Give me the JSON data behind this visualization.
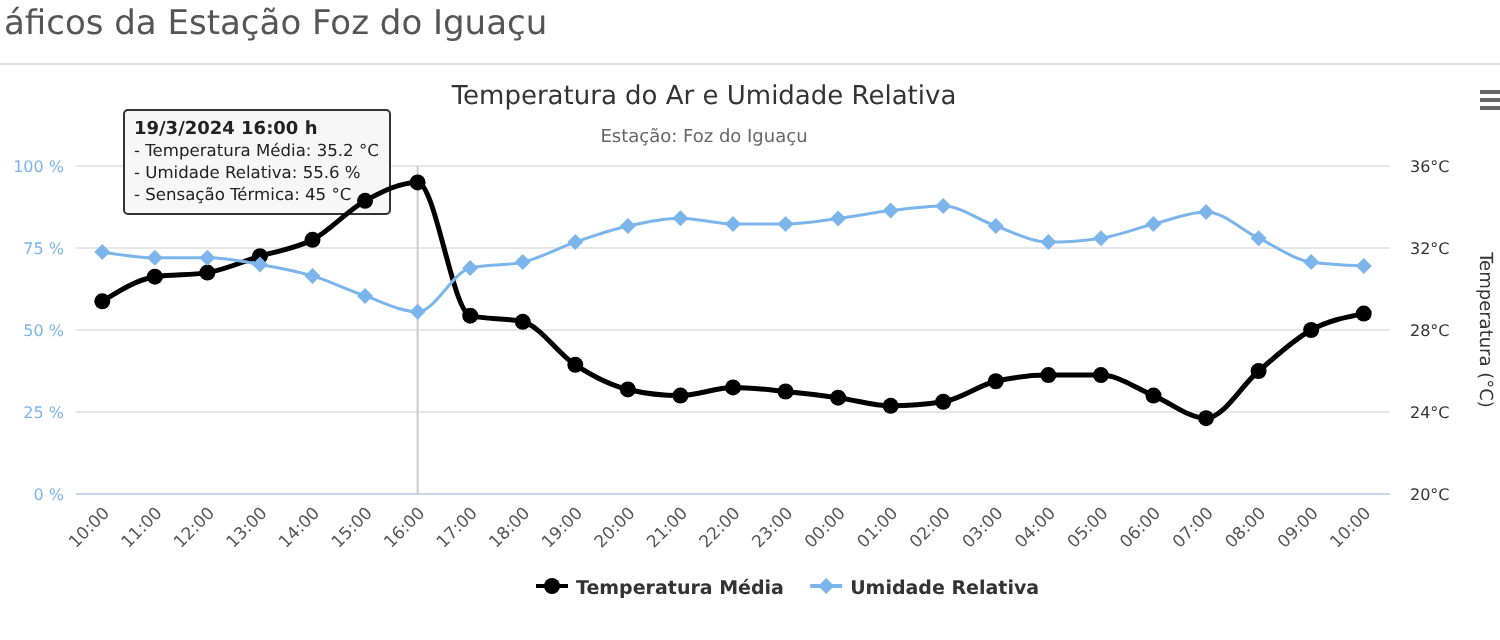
{
  "chart_data": {
    "type": "line",
    "title": "Temperatura do Ar e Umidade Relativa",
    "subtitle": "Estação: Foz do Iguaçu",
    "y2label": "Temperatura (°C)",
    "annotations": [
      "áficos da Estação Foz do Iguaçu",
      "19/3/2024 16:00 h\n- Temperatura Média: 35.2 °C\n- Umidade Relativa: 55.6 %\n- Sensação Térmica: 45 °C"
    ],
    "categories": [
      "10:00",
      "11:00",
      "12:00",
      "13:00",
      "14:00",
      "15:00",
      "16:00",
      "17:00",
      "18:00",
      "19:00",
      "20:00",
      "21:00",
      "22:00",
      "23:00",
      "00:00",
      "01:00",
      "02:00",
      "03:00",
      "04:00",
      "05:00",
      "06:00",
      "07:00",
      "08:00",
      "09:00",
      "10:00"
    ],
    "series": [
      {
        "name": "Temperatura Média",
        "color": "#000000",
        "axis": "y2",
        "marker": "circle",
        "values": [
          29.4,
          30.6,
          30.8,
          31.6,
          32.4,
          34.3,
          35.2,
          28.7,
          28.4,
          26.3,
          25.1,
          24.8,
          25.2,
          25.0,
          24.7,
          24.3,
          24.5,
          25.5,
          25.8,
          25.8,
          24.8,
          23.7,
          26.0,
          28.0,
          28.8
        ]
      },
      {
        "name": "Umidade Relativa",
        "color": "#7cb5ec",
        "marker": "diamond",
        "values": [
          73.8,
          72,
          72,
          70,
          66.5,
          60.4,
          55.6,
          68.9,
          70.7,
          76.8,
          81.7,
          84.1,
          82.3,
          82.3,
          84,
          86.4,
          87.8,
          81.7,
          76.8,
          78,
          82.3,
          86,
          78,
          70.7,
          69.5
        ]
      }
    ],
    "ylim": [
      0,
      100
    ],
    "yticks": [
      {
        "value": 0,
        "label": "0 %"
      },
      {
        "value": 25,
        "label": "25 %"
      },
      {
        "value": 50,
        "label": "50 %"
      },
      {
        "value": 75,
        "label": "75 %"
      },
      {
        "value": 100,
        "label": "100 %"
      }
    ],
    "y2lim": [
      20,
      36
    ],
    "y2ticks": [
      {
        "value": 20,
        "label": "20°C"
      },
      {
        "value": 24,
        "label": "24°C"
      },
      {
        "value": 28,
        "label": "28°C"
      },
      {
        "value": 32,
        "label": "32°C"
      },
      {
        "value": 36,
        "label": "36°C"
      }
    ],
    "ref_lines": [
      {
        "axis": "x",
        "value": "16:00",
        "color": "#cccccc"
      }
    ],
    "grid": "y",
    "legend": "bottom",
    "line_style": "solid"
  }
}
